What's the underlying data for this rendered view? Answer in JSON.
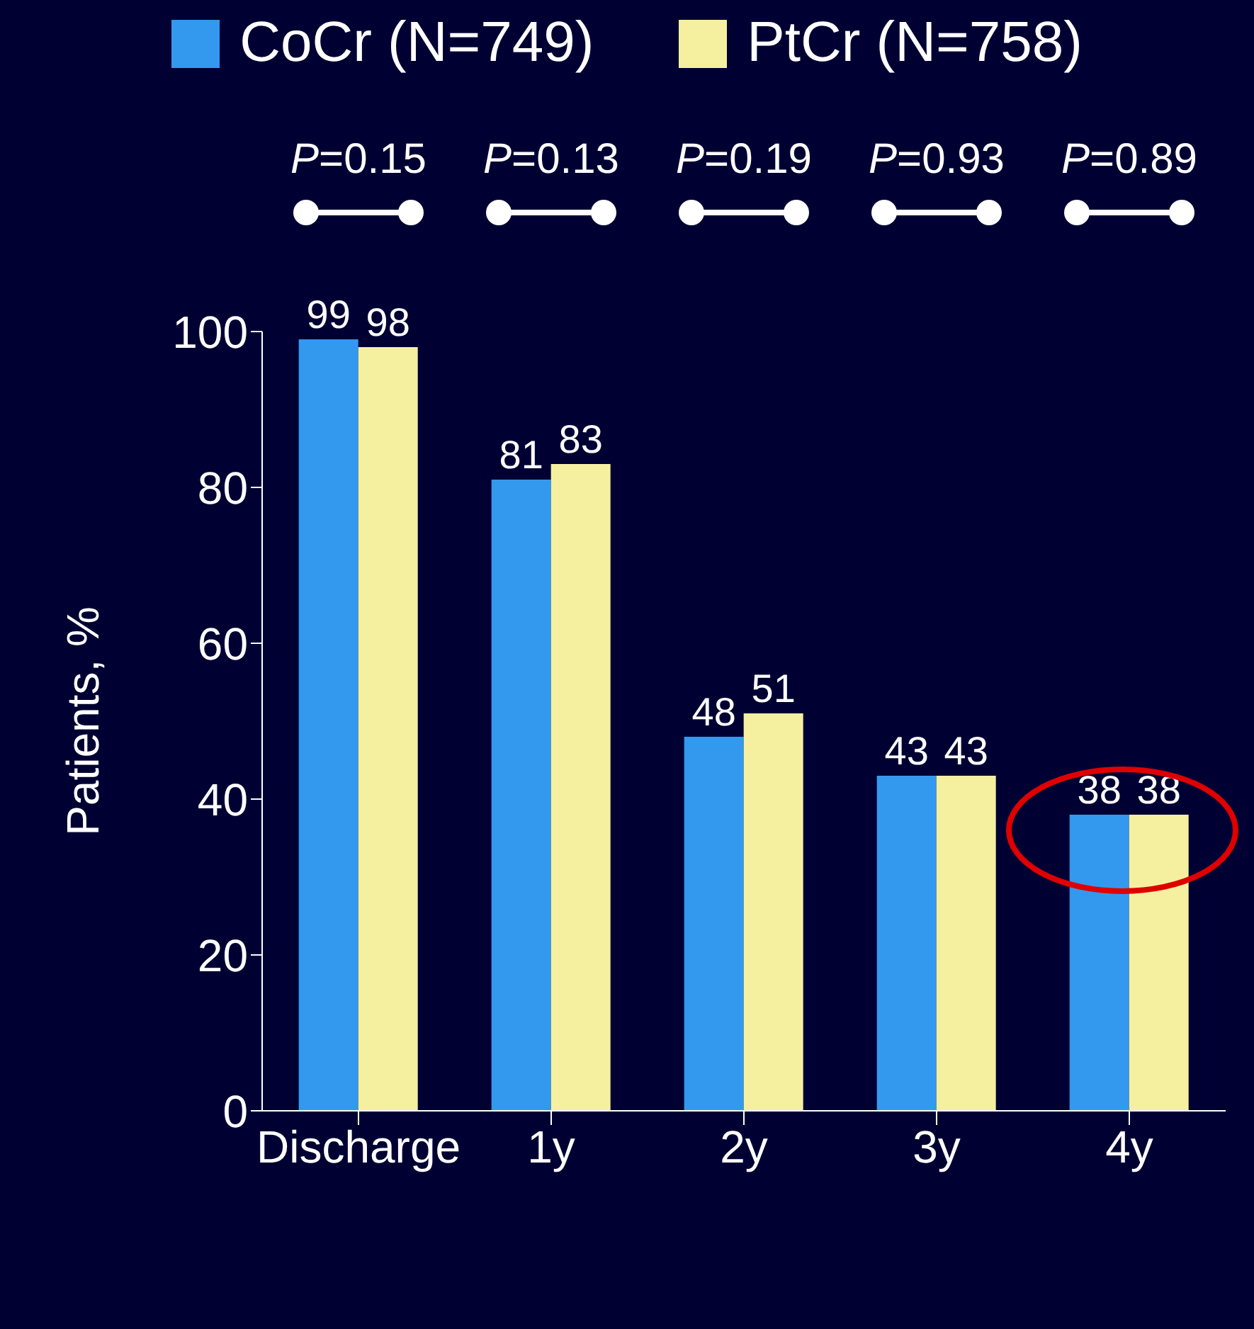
{
  "chart_data": {
    "type": "bar",
    "ylabel": "Patients, %",
    "categories": [
      "Discharge",
      "1y",
      "2y",
      "3y",
      "4y"
    ],
    "series": [
      {
        "name": "CoCr (N=749)",
        "color": "#3399ee",
        "values": [
          99,
          81,
          48,
          43,
          38
        ]
      },
      {
        "name": "PtCr (N=758)",
        "color": "#f5f0a0",
        "values": [
          98,
          83,
          51,
          43,
          38
        ]
      }
    ],
    "ylim": [
      0,
      100
    ],
    "yticks": [
      0,
      20,
      40,
      60,
      80,
      100
    ],
    "data_labels": true,
    "legend": "top",
    "grid": false,
    "annotations": [
      "P=0.15",
      "P=0.13",
      "P=0.19",
      "P=0.93",
      "P=0.89"
    ]
  }
}
